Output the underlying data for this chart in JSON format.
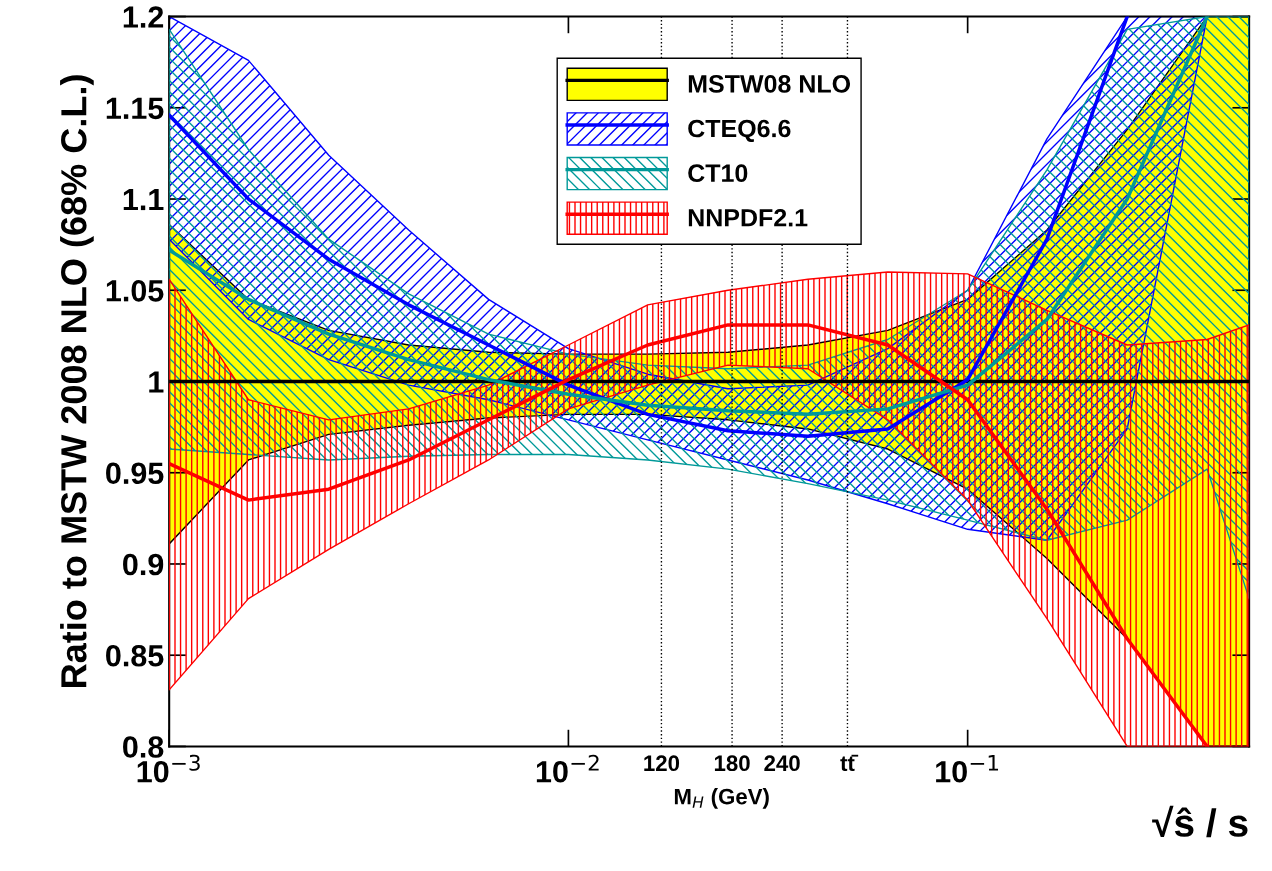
{
  "chart_data": {
    "type": "line",
    "log": "x",
    "xlabel": "√ŝ / s",
    "ylabel": "Ratio to MSTW 2008 NLO (68% C.L.)",
    "x": [
      0.001,
      0.00158,
      0.00251,
      0.00398,
      0.00631,
      0.01,
      0.0158,
      0.0251,
      0.0398,
      0.0631,
      0.1,
      0.158,
      0.251,
      0.398,
      0.507
    ],
    "series": [
      {
        "name": "MSTW08 NLO",
        "color": "#000000",
        "values": [
          1,
          1,
          1,
          1,
          1,
          1,
          1,
          1,
          1,
          1,
          1,
          1,
          1,
          1,
          1
        ],
        "lower": [
          0.911,
          0.957,
          0.971,
          0.976,
          0.98,
          0.982,
          0.982,
          0.979,
          0.974,
          0.963,
          0.941,
          0.903,
          0.859,
          0.8,
          0.8
        ],
        "upper": [
          1.086,
          1.045,
          1.028,
          1.02,
          1.016,
          1.015,
          1.015,
          1.016,
          1.02,
          1.028,
          1.045,
          1.083,
          1.138,
          1.2,
          1.2
        ]
      },
      {
        "name": "CTEQ6.6",
        "color": "#0000ff",
        "values": [
          1.146,
          1.1,
          1.067,
          1.042,
          1.02,
          0.998,
          0.982,
          0.973,
          0.97,
          0.974,
          1.001,
          1.078,
          1.2,
          null,
          null
        ],
        "lower": [
          1.078,
          1.034,
          1.012,
          0.998,
          0.99,
          0.979,
          0.968,
          0.957,
          0.946,
          0.933,
          0.919,
          0.913,
          0.974,
          1.2,
          null
        ],
        "upper": [
          1.2,
          1.176,
          1.124,
          1.083,
          1.045,
          1.018,
          1.004,
          0.996,
          0.998,
          1.018,
          1.05,
          1.133,
          1.2,
          1.2,
          null
        ]
      },
      {
        "name": "CT10",
        "color": "#009999",
        "values": [
          1.072,
          1.045,
          1.026,
          1.012,
          1.001,
          0.993,
          0.987,
          0.984,
          0.982,
          0.985,
          0.998,
          1.034,
          1.1,
          1.2,
          null
        ],
        "lower": [
          0.963,
          0.96,
          0.957,
          0.959,
          0.96,
          0.96,
          0.957,
          0.952,
          0.944,
          0.935,
          0.924,
          0.913,
          0.924,
          0.952,
          0.881
        ],
        "upper": [
          1.193,
          1.127,
          1.078,
          1.048,
          1.026,
          1.015,
          1.009,
          1.007,
          1.009,
          1.023,
          1.05,
          1.116,
          1.193,
          1.2,
          1.2
        ]
      },
      {
        "name": "NNPDF2.1",
        "color": "#ff0000",
        "values": [
          0.955,
          0.935,
          0.941,
          0.957,
          0.979,
          1.001,
          1.02,
          1.031,
          1.031,
          1.02,
          0.99,
          0.93,
          0.859,
          0.8,
          null
        ],
        "lower": [
          0.831,
          0.881,
          0.908,
          0.933,
          0.957,
          0.985,
          0.998,
          1.009,
          1.007,
          0.979,
          0.935,
          0.87,
          0.8,
          0.8,
          0.8
        ],
        "upper": [
          1.056,
          0.99,
          0.979,
          0.985,
          0.998,
          1.02,
          1.042,
          1.05,
          1.056,
          1.06,
          1.059,
          1.039,
          1.02,
          1.023,
          1.031
        ]
      }
    ],
    "xlim": [
      0.001,
      0.507
    ],
    "ylim": [
      0.8,
      1.2
    ],
    "xticks": [
      {
        "value": 0.001,
        "label": "10$^{−3}$"
      },
      {
        "value": 0.01,
        "label": "10$^{−2}$"
      },
      {
        "value": 0.1,
        "label": "10$^{−1}$"
      }
    ],
    "yticks": [
      0.8,
      0.85,
      0.9,
      0.95,
      1,
      1.05,
      1.1,
      1.15,
      1.2
    ],
    "ref_lines": [
      {
        "axis": "x",
        "value": 0.0171,
        "line_style": "dotted"
      },
      {
        "axis": "x",
        "value": 0.0257,
        "line_style": "dotted"
      },
      {
        "axis": "x",
        "value": 0.0343,
        "line_style": "dotted"
      },
      {
        "axis": "x",
        "value": 0.05,
        "line_style": "dotted"
      }
    ],
    "annotations": [
      {
        "text": "120",
        "x": 0.0171,
        "y": 0.8
      },
      {
        "text": "180",
        "x": 0.0257,
        "y": 0.8
      },
      {
        "text": "240",
        "x": 0.0343,
        "y": 0.8
      },
      {
        "text": "tt̄",
        "x": 0.05,
        "y": 0.8
      },
      "M$_{H}$ (GeV)"
    ],
    "legend": "top",
    "grid": false
  }
}
